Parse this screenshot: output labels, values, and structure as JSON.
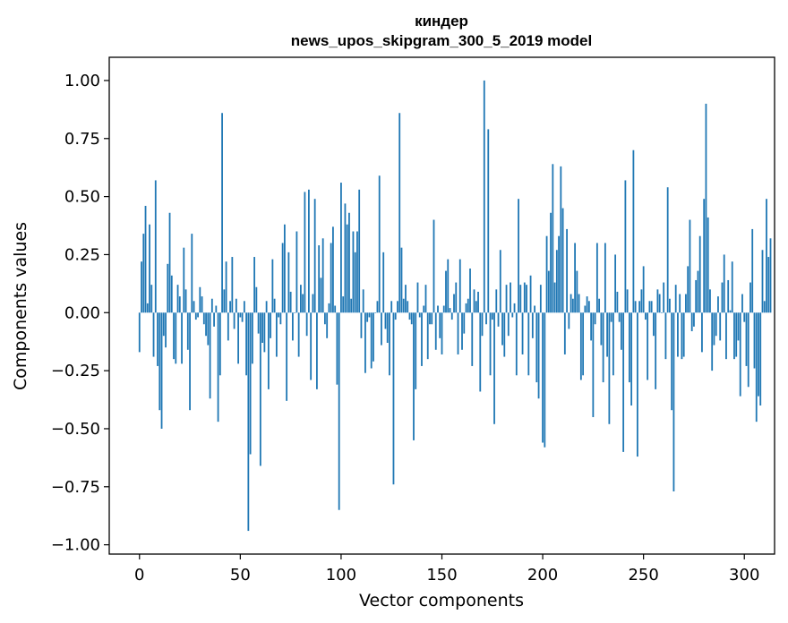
{
  "chart_data": {
    "type": "bar",
    "title": "киндер",
    "subtitle": "news_upos_skipgram_300_5_2019 model",
    "xlabel": "Vector components",
    "ylabel": "Components values",
    "xlim": [
      -15,
      315
    ],
    "ylim": [
      -1.04,
      1.1
    ],
    "xticks": [
      0,
      50,
      100,
      150,
      200,
      250,
      300
    ],
    "yticks": [
      -1.0,
      -0.75,
      -0.5,
      -0.25,
      0.0,
      0.25,
      0.5,
      0.75,
      1.0
    ],
    "ytick_labels": [
      "−1.00",
      "−0.75",
      "−0.50",
      "−0.25",
      "0.00",
      "0.25",
      "0.50",
      "0.75",
      "1.00"
    ],
    "grid": false,
    "color": "#1f77b4",
    "values": [
      -0.17,
      0.22,
      0.34,
      0.46,
      0.04,
      0.38,
      0.12,
      -0.19,
      0.57,
      -0.23,
      -0.42,
      -0.5,
      -0.1,
      -0.15,
      0.21,
      0.43,
      0.16,
      -0.2,
      -0.22,
      0.12,
      0.07,
      -0.22,
      0.28,
      0.1,
      -0.16,
      -0.42,
      0.34,
      0.05,
      -0.03,
      -0.02,
      0.11,
      0.07,
      -0.05,
      -0.1,
      -0.14,
      -0.37,
      0.06,
      -0.06,
      0.03,
      -0.47,
      -0.27,
      0.86,
      0.1,
      0.22,
      -0.12,
      0.05,
      0.24,
      -0.07,
      0.06,
      -0.22,
      -0.02,
      -0.04,
      0.05,
      -0.27,
      -0.94,
      -0.61,
      -0.22,
      0.24,
      0.11,
      -0.09,
      -0.66,
      -0.13,
      -0.17,
      0.05,
      -0.33,
      -0.11,
      0.23,
      0.06,
      -0.19,
      -0.02,
      -0.05,
      0.3,
      0.38,
      -0.38,
      0.26,
      0.09,
      -0.12,
      0.0,
      0.35,
      -0.19,
      0.12,
      0.08,
      0.52,
      -0.1,
      0.53,
      -0.29,
      0.08,
      0.49,
      -0.33,
      0.29,
      0.15,
      0.32,
      -0.05,
      -0.11,
      0.04,
      0.3,
      0.37,
      0.03,
      -0.31,
      -0.85,
      0.56,
      0.07,
      0.47,
      0.38,
      0.43,
      0.06,
      0.35,
      0.26,
      0.35,
      0.53,
      -0.11,
      0.1,
      -0.26,
      -0.04,
      -0.02,
      -0.24,
      -0.21,
      0.0,
      0.05,
      0.59,
      -0.14,
      0.26,
      -0.07,
      -0.13,
      -0.27,
      0.05,
      -0.74,
      -0.03,
      0.05,
      0.86,
      0.28,
      0.06,
      0.12,
      0.05,
      -0.03,
      -0.05,
      -0.55,
      -0.33,
      0.13,
      -0.02,
      -0.23,
      0.03,
      0.12,
      -0.2,
      -0.05,
      -0.05,
      0.4,
      -0.16,
      0.03,
      -0.11,
      -0.18,
      0.03,
      0.18,
      0.23,
      0.02,
      -0.03,
      0.08,
      0.13,
      -0.18,
      0.23,
      -0.16,
      -0.09,
      0.04,
      0.06,
      0.19,
      -0.23,
      0.1,
      0.05,
      0.09,
      -0.34,
      -0.1,
      1.0,
      -0.05,
      0.79,
      -0.27,
      -0.03,
      -0.48,
      0.1,
      -0.06,
      0.27,
      -0.14,
      -0.19,
      0.12,
      -0.1,
      0.13,
      -0.02,
      0.04,
      -0.27,
      0.49,
      0.12,
      -0.18,
      0.13,
      0.12,
      -0.27,
      0.16,
      -0.11,
      0.03,
      -0.3,
      -0.37,
      0.12,
      -0.56,
      -0.58,
      0.33,
      0.18,
      0.43,
      0.64,
      0.13,
      0.27,
      0.33,
      0.63,
      0.45,
      -0.18,
      0.36,
      -0.07,
      0.08,
      0.06,
      0.3,
      0.18,
      0.08,
      -0.29,
      -0.27,
      0.03,
      0.07,
      0.05,
      -0.12,
      -0.45,
      -0.05,
      0.3,
      0.06,
      -0.14,
      -0.3,
      0.3,
      -0.19,
      -0.48,
      -0.04,
      -0.27,
      0.25,
      0.09,
      -0.04,
      -0.16,
      -0.6,
      0.57,
      0.1,
      -0.3,
      -0.4,
      0.7,
      0.05,
      -0.62,
      0.05,
      0.1,
      0.2,
      -0.03,
      -0.29,
      0.05,
      0.05,
      -0.1,
      -0.33,
      0.1,
      0.08,
      0.0,
      0.13,
      -0.2,
      0.54,
      0.06,
      -0.42,
      -0.77,
      0.12,
      -0.19,
      0.08,
      -0.2,
      -0.19,
      0.08,
      0.2,
      0.4,
      -0.08,
      -0.06,
      0.14,
      0.18,
      0.33,
      -0.17,
      0.49,
      0.9,
      0.41,
      0.1,
      -0.25,
      -0.14,
      -0.1,
      0.07,
      -0.12,
      0.13,
      0.25,
      -0.2,
      0.14,
      0.01,
      0.22,
      -0.2,
      -0.19,
      -0.12,
      -0.36,
      0.08,
      -0.04,
      -0.23,
      -0.32,
      0.13,
      0.36,
      -0.24,
      -0.47,
      -0.36,
      -0.4,
      0.27,
      0.05,
      0.49,
      0.24,
      0.32
    ]
  }
}
